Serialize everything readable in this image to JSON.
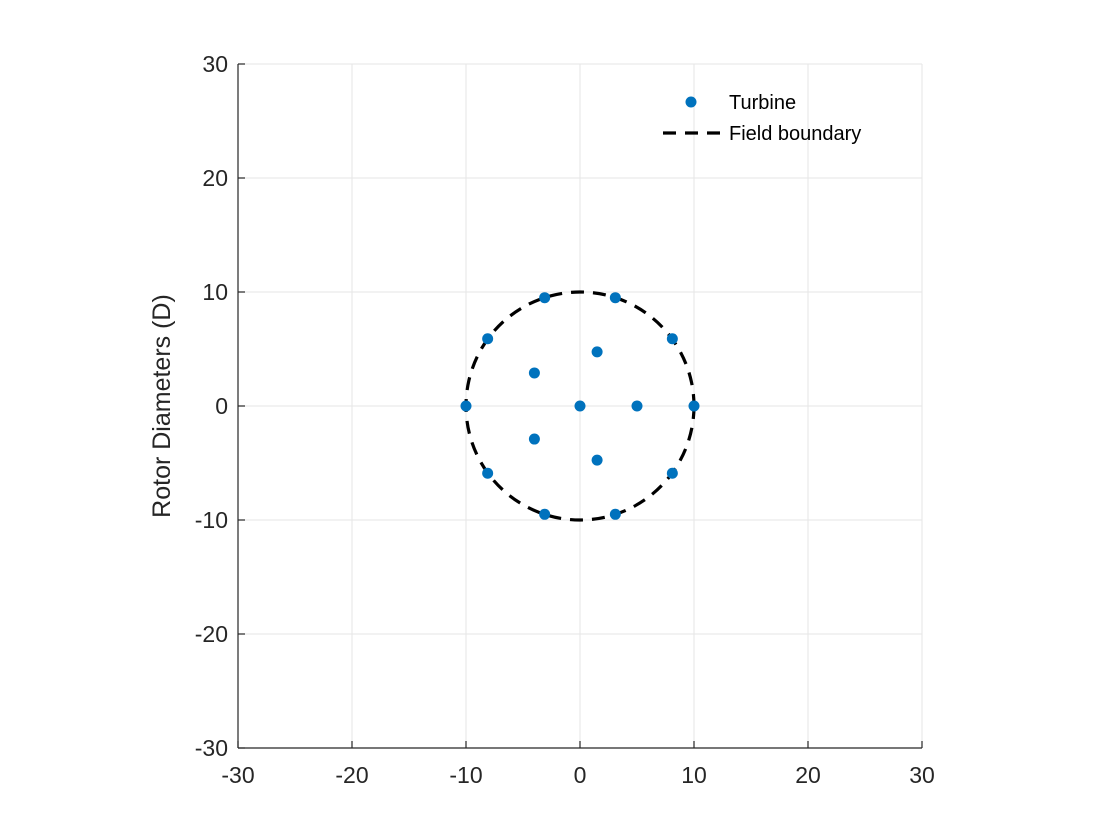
{
  "chart_data": {
    "type": "scatter",
    "title": "",
    "xlabel": "",
    "ylabel": "Rotor Diameters (D)",
    "xlim": [
      -30,
      30
    ],
    "ylim": [
      -30,
      30
    ],
    "xticks": [
      -30,
      -20,
      -10,
      0,
      10,
      20,
      30
    ],
    "yticks": [
      -30,
      -20,
      -10,
      0,
      10,
      20,
      30
    ],
    "xtick_labels": [
      "-30",
      "-20",
      "-10",
      "0",
      "10",
      "20",
      "30"
    ],
    "ytick_labels": [
      "-30",
      "-20",
      "-10",
      "0",
      "10",
      "20",
      "30"
    ],
    "grid": true,
    "legend_position": "top-right",
    "series": [
      {
        "name": "Turbine",
        "kind": "markers",
        "color": "#0072bd",
        "points": [
          [
            0,
            0
          ],
          [
            5,
            0
          ],
          [
            1.5,
            4.75
          ],
          [
            -4,
            2.9
          ],
          [
            -4,
            -2.9
          ],
          [
            1.5,
            -4.75
          ],
          [
            10,
            0
          ],
          [
            8.1,
            5.9
          ],
          [
            3.1,
            9.5
          ],
          [
            -3.1,
            9.5
          ],
          [
            -8.1,
            5.9
          ],
          [
            -10,
            0
          ],
          [
            -8.1,
            -5.9
          ],
          [
            -3.1,
            -9.5
          ],
          [
            3.1,
            -9.5
          ],
          [
            8.1,
            -5.9
          ]
        ]
      },
      {
        "name": "Field boundary",
        "kind": "dashed-circle",
        "color": "#000000",
        "center": [
          0,
          0
        ],
        "radius": 10
      }
    ]
  }
}
